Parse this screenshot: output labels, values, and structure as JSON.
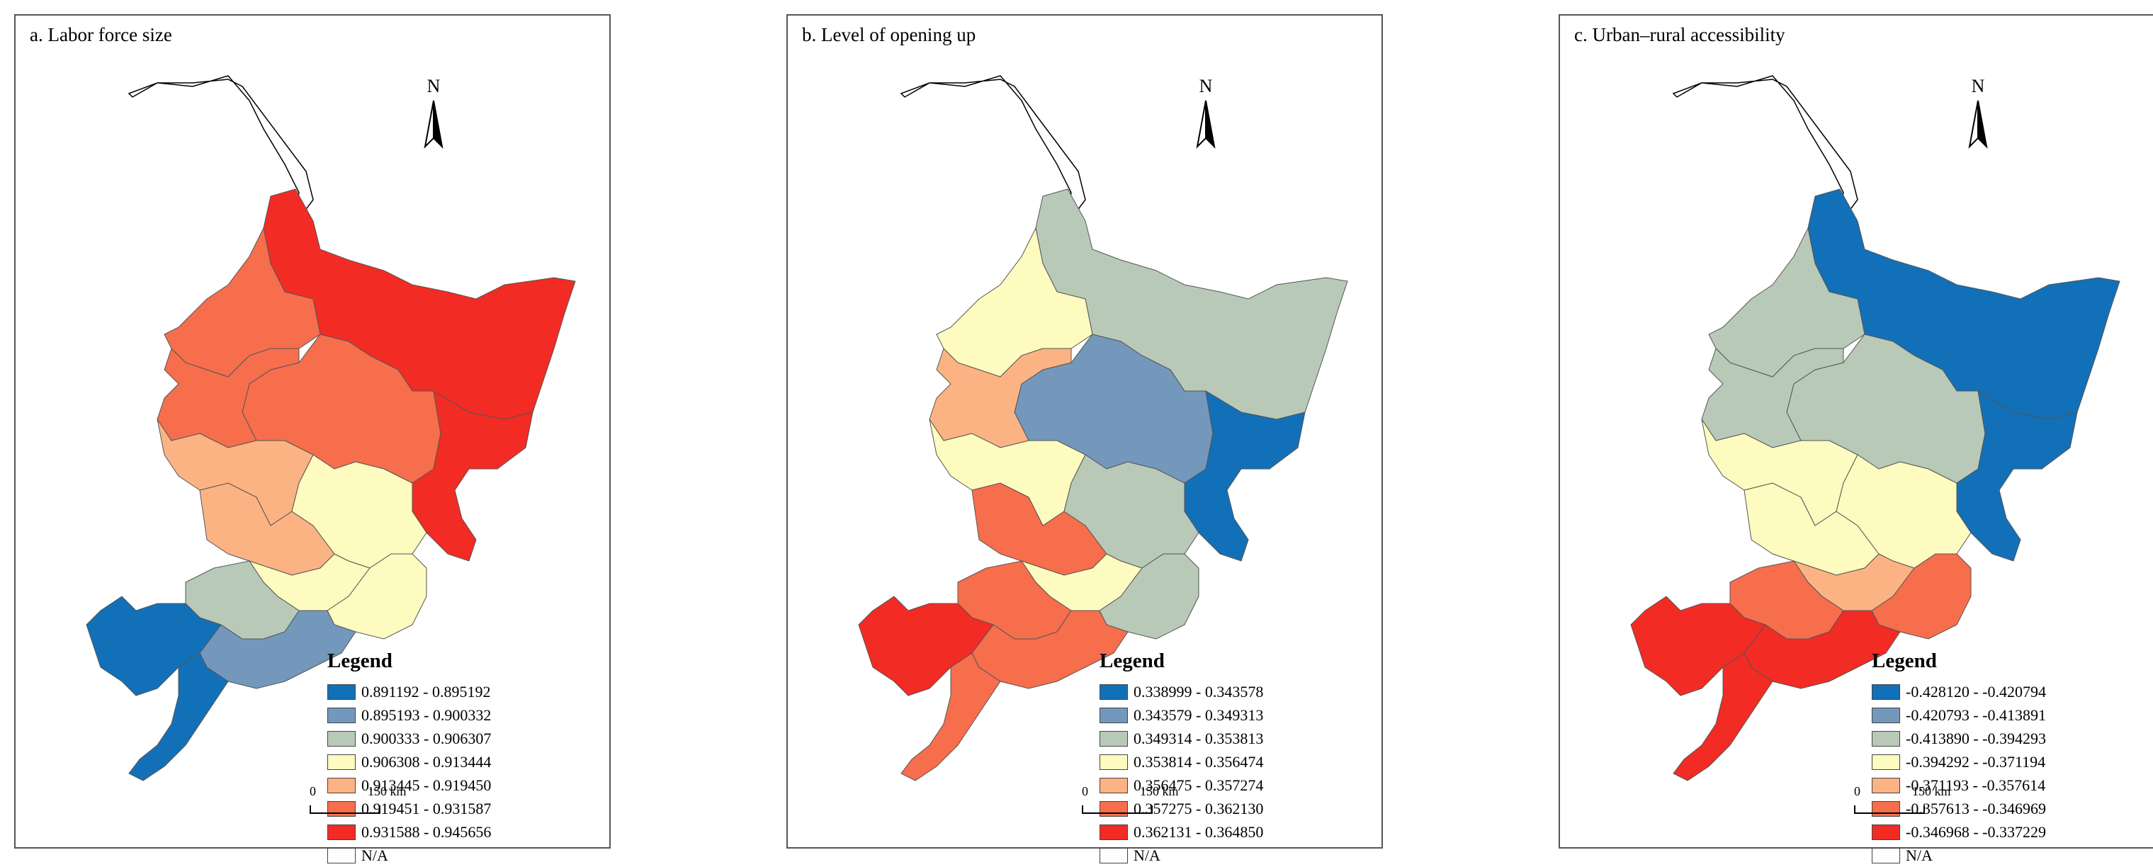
{
  "panels": [
    {
      "title": "a. Labor force size",
      "north": "N",
      "legend_title": "Legend",
      "scale": {
        "zero": "0",
        "end": "150 km"
      },
      "legend": [
        {
          "label": "0.891192 - 0.895192",
          "color": "#1270b8"
        },
        {
          "label": "0.895193 - 0.900332",
          "color": "#7398bc"
        },
        {
          "label": "0.900333 - 0.906307",
          "color": "#b9c9b8"
        },
        {
          "label": "0.906308 - 0.913444",
          "color": "#fdfbbf"
        },
        {
          "label": "0.913445 - 0.919450",
          "color": "#fbb383"
        },
        {
          "label": "0.919451 - 0.931587",
          "color": "#f66e4c"
        },
        {
          "label": "0.931588 - 0.945656",
          "color": "#f22b24"
        },
        {
          "label": "N/A",
          "color": "#ffffff"
        }
      ],
      "regions": {
        "north": 6,
        "northwest": 5,
        "center": 5,
        "east": 6,
        "west": 4,
        "westmid": 4,
        "middle": 3,
        "midsouth": 3,
        "southeast": 3,
        "southwest": 0,
        "southcoast": 1,
        "peninsula": 0,
        "sw2": 2,
        "upperwest": 5,
        "centralwest": 4
      }
    },
    {
      "title": "b. Level of opening up",
      "north": "N",
      "legend_title": "Legend",
      "scale": {
        "zero": "0",
        "end": "150 km"
      },
      "legend": [
        {
          "label": "0.338999 - 0.343578",
          "color": "#1270b8"
        },
        {
          "label": "0.343579 - 0.349313",
          "color": "#7398bc"
        },
        {
          "label": "0.349314 - 0.353813",
          "color": "#b9c9b8"
        },
        {
          "label": "0.353814 - 0.356474",
          "color": "#fdfbbf"
        },
        {
          "label": "0.356475 - 0.357274",
          "color": "#fbb383"
        },
        {
          "label": "0.357275 - 0.362130",
          "color": "#f66e4c"
        },
        {
          "label": "0.362131 - 0.364850",
          "color": "#f22b24"
        },
        {
          "label": "N/A",
          "color": "#ffffff"
        }
      ],
      "regions": {
        "north": 2,
        "northwest": 4,
        "center": 1,
        "east": 0,
        "west": 3,
        "westmid": 5,
        "middle": 2,
        "midsouth": 3,
        "southeast": 2,
        "southwest": 6,
        "southcoast": 5,
        "peninsula": 5,
        "sw2": 5,
        "upperwest": 3,
        "centralwest": 3
      }
    },
    {
      "title": "c. Urban–rural accessibility",
      "north": "N",
      "legend_title": "Legend",
      "scale": {
        "zero": "0",
        "end": "150 km"
      },
      "legend": [
        {
          "label": "-0.428120 - -0.420794",
          "color": "#1270b8"
        },
        {
          "label": "-0.420793 - -0.413891",
          "color": "#7398bc"
        },
        {
          "label": "-0.413890 - -0.394293",
          "color": "#b9c9b8"
        },
        {
          "label": "-0.394292 - -0.371194",
          "color": "#fdfbbf"
        },
        {
          "label": "-0.371193 - -0.357614",
          "color": "#fbb383"
        },
        {
          "label": "-0.357613 - -0.346969",
          "color": "#f66e4c"
        },
        {
          "label": "-0.346968 - -0.337229",
          "color": "#f22b24"
        },
        {
          "label": "N/A",
          "color": "#ffffff"
        }
      ],
      "regions": {
        "north": 0,
        "northwest": 2,
        "center": 2,
        "east": 0,
        "west": 3,
        "westmid": 3,
        "middle": 3,
        "midsouth": 4,
        "southeast": 5,
        "southwest": 6,
        "southcoast": 6,
        "peninsula": 6,
        "sw2": 5,
        "upperwest": 2,
        "centralwest": 3
      }
    }
  ]
}
